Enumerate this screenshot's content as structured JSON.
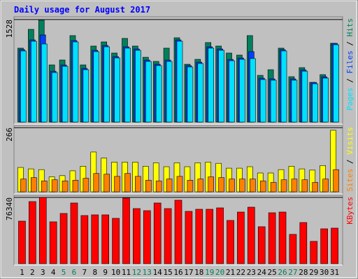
{
  "chart_data": [
    {
      "type": "bar",
      "title": "Daily usage for August 2017",
      "legend_separator": " / ",
      "ylim": [
        0,
        1528
      ],
      "yticks": [
        1528
      ],
      "series": [
        {
          "name": "Hits",
          "color": "#00805c",
          "values": [
            1102,
            1382,
            1517,
            852,
            925,
            1289,
            852,
            1133,
            1195,
            1029,
            1247,
            1133,
            966,
            904,
            1102,
            1257,
            862,
            935,
            1185,
            1133,
            1029,
            998,
            1289,
            696,
            780,
            1102,
            676,
            811,
            592,
            707,
            1174
          ]
        },
        {
          "name": "Files",
          "color": "#0040ff",
          "values": [
            1080,
            1225,
            1299,
            758,
            851,
            1215,
            800,
            1070,
            1142,
            976,
            1122,
            1090,
            924,
            862,
            924,
            1225,
            841,
            893,
            1122,
            1090,
            934,
            955,
            1050,
            654,
            644,
            1080,
            644,
            778,
            591,
            675,
            1173
          ]
        },
        {
          "name": "Pages",
          "color": "#00e0ff",
          "values": [
            1060,
            1205,
            1164,
            738,
            831,
            1195,
            780,
            1050,
            1122,
            956,
            1102,
            1070,
            904,
            842,
            904,
            1205,
            821,
            873,
            1102,
            1070,
            914,
            935,
            946,
            634,
            624,
            1060,
            624,
            758,
            571,
            655,
            1153
          ]
        }
      ]
    },
    {
      "type": "bar",
      "ylim": [
        0,
        266
      ],
      "yticks": [
        266
      ],
      "series": [
        {
          "name": "Visits",
          "color": "#ffff00",
          "values": [
            101,
            95,
            92,
            62,
            67,
            87,
            106,
            165,
            140,
            123,
            123,
            123,
            106,
            120,
            104,
            120,
            104,
            120,
            123,
            118,
            98,
            98,
            104,
            78,
            78,
            92,
            106,
            95,
            90,
            109,
            255
          ]
        },
        {
          "name": "Sites",
          "color": "#ff8000",
          "values": [
            53,
            59,
            45,
            50,
            45,
            48,
            56,
            76,
            73,
            64,
            76,
            64,
            48,
            45,
            53,
            64,
            48,
            53,
            62,
            59,
            53,
            53,
            53,
            45,
            39,
            50,
            53,
            50,
            39,
            53,
            92
          ]
        }
      ]
    },
    {
      "type": "bar",
      "ylim": [
        0,
        76340
      ],
      "yticks": [
        76340
      ],
      "categories": [
        "1",
        "2",
        "3",
        "4",
        "5",
        "6",
        "7",
        "8",
        "9",
        "10",
        "11",
        "12",
        "13",
        "14",
        "15",
        "16",
        "17",
        "18",
        "19",
        "20",
        "21",
        "22",
        "23",
        "24",
        "25",
        "26",
        "27",
        "28",
        "29",
        "30",
        "31"
      ],
      "category_colors": [
        "#000000",
        "#000000",
        "#000000",
        "#000000",
        "#00805c",
        "#00805c",
        "#000000",
        "#000000",
        "#000000",
        "#000000",
        "#000000",
        "#00805c",
        "#00805c",
        "#000000",
        "#000000",
        "#000000",
        "#000000",
        "#000000",
        "#00805c",
        "#00805c",
        "#000000",
        "#000000",
        "#000000",
        "#000000",
        "#000000",
        "#00805c",
        "#00805c",
        "#000000",
        "#000000",
        "#000000",
        "#000000"
      ],
      "series": [
        {
          "name": "KBytes",
          "color": "#ff0000",
          "values": [
            49020,
            71520,
            76340,
            48220,
            57860,
            69910,
            55450,
            56250,
            56250,
            52230,
            75540,
            63480,
            61070,
            69910,
            63480,
            73130,
            60270,
            62680,
            62680,
            64290,
            49820,
            59470,
            65090,
            42590,
            58660,
            59470,
            33750,
            47410,
            25720,
            40180,
            40980
          ]
        }
      ]
    }
  ]
}
